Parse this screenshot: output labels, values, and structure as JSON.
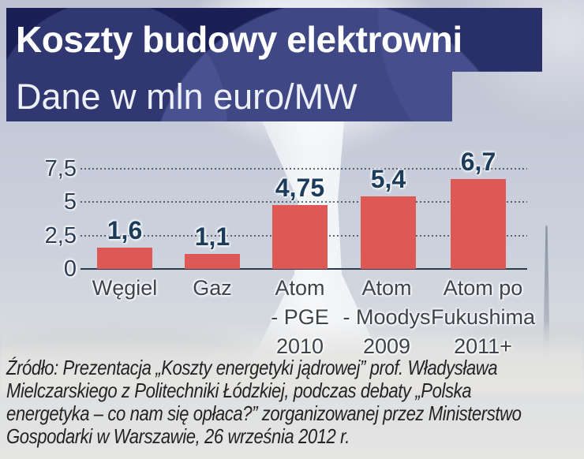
{
  "title": {
    "line1": "Koszty budowy elektrowni",
    "line2": "Dane w mln euro/MW"
  },
  "chart_data": {
    "type": "bar",
    "title": "Koszty budowy elektrowni",
    "subtitle": "Dane w mln euro/MW",
    "categories": [
      [
        "Węgiel"
      ],
      [
        "Gaz"
      ],
      [
        "Atom",
        "- PGE",
        "2010"
      ],
      [
        "Atom",
        "- Moodys",
        "2009"
      ],
      [
        "Atom po",
        "Fukushima",
        "2011+"
      ]
    ],
    "values": [
      1.6,
      1.1,
      4.75,
      5.4,
      6.7
    ],
    "value_labels": [
      "1,6",
      "1,1",
      "4,75",
      "5,4",
      "6,7"
    ],
    "y_ticks": [
      {
        "label": "7,5",
        "value": 7.5
      },
      {
        "label": "5",
        "value": 5
      },
      {
        "label": "2,5",
        "value": 2.5
      },
      {
        "label": "0",
        "value": 0
      }
    ],
    "ylim": [
      0,
      8.3
    ],
    "xlabel": "",
    "ylabel": "mln euro/MW",
    "grid": "dotted-horizontal",
    "legend": "none",
    "bar_color": "#de5956",
    "value_label_color": "#1c3c5c"
  },
  "source": {
    "lines": [
      "Źródło: Prezentacja „Koszty energetyki jądrowej” prof. Władysława",
      "Mielczarskiego z Politechniki Łódzkiej, podczas debaty „Polska",
      "energetyka – co nam się opłaca?” zorganizowanej przez Ministerstwo",
      "Gospodarki w Warszawie, 26 września 2012 r."
    ],
    "text": "Źródło: Prezentacja „Koszty energetyki jądrowej” prof. Władysława Mielczarskiego z Politechniki Łódzkiej, podczas debaty „Polska energetyka – co nam się opłaca?” zorganizowanej przez Ministerstwo Gospodarki w Warszawie, 26 września 2012 r."
  },
  "colors": {
    "title_bg": "#1a2055",
    "title_text": "#ffffff",
    "subtitle_text": "#eef0f8",
    "bar": "#de5956",
    "axis_label": "#2c3c55",
    "category_label": "#3e434b",
    "source_text": "#232323",
    "background_sky": "#c5cad8"
  }
}
